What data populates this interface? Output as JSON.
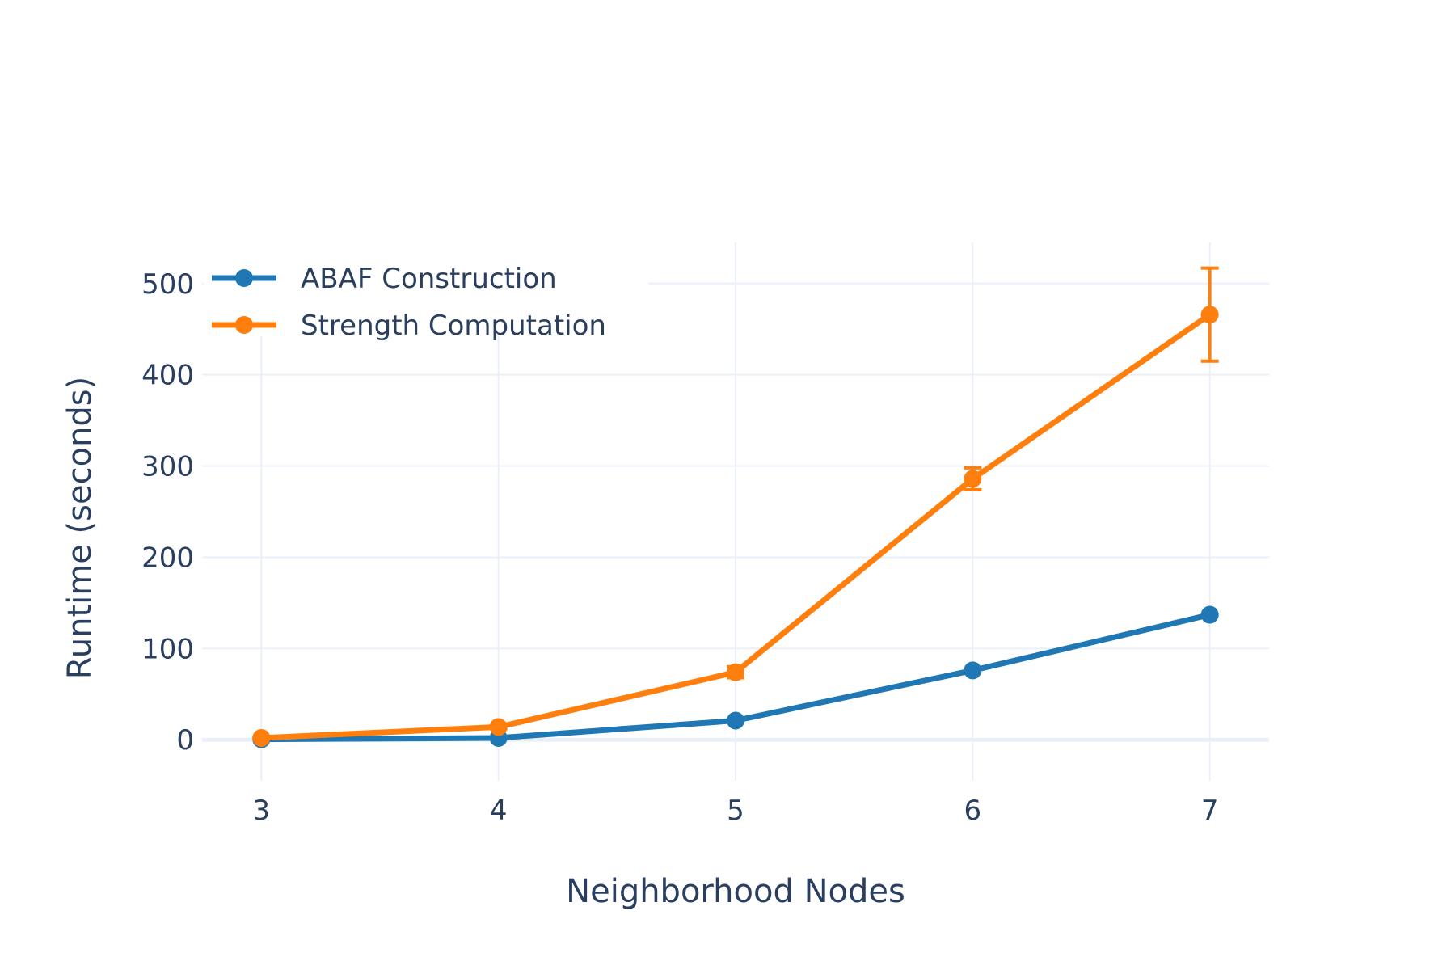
{
  "chart_data": {
    "type": "line",
    "title": "",
    "xlabel": "Neighborhood Nodes",
    "ylabel": "Runtime (seconds)",
    "x": [
      3,
      4,
      5,
      6,
      7
    ],
    "x_ticks": [
      "3",
      "4",
      "5",
      "6",
      "7"
    ],
    "y_ticks": [
      "0",
      "100",
      "200",
      "300",
      "400",
      "500"
    ],
    "xlim": [
      2.75,
      7.25
    ],
    "ylim": [
      -45,
      545
    ],
    "grid": true,
    "legend_position": "top-left",
    "series": [
      {
        "name": "ABAF Construction",
        "color": "#1f77b4",
        "values": [
          0.5,
          2,
          21,
          76,
          137
        ],
        "error": [
          0,
          0,
          0,
          0,
          0
        ]
      },
      {
        "name": "Strength Computation",
        "color": "#ff7f0e",
        "values": [
          2,
          14,
          74,
          286,
          466
        ],
        "error": [
          0.5,
          1.5,
          6,
          12,
          51
        ]
      }
    ]
  },
  "colors": {
    "grid": "#ebf0f8",
    "zero_line": "#ebf0f8",
    "text": "#2a3f5f"
  }
}
